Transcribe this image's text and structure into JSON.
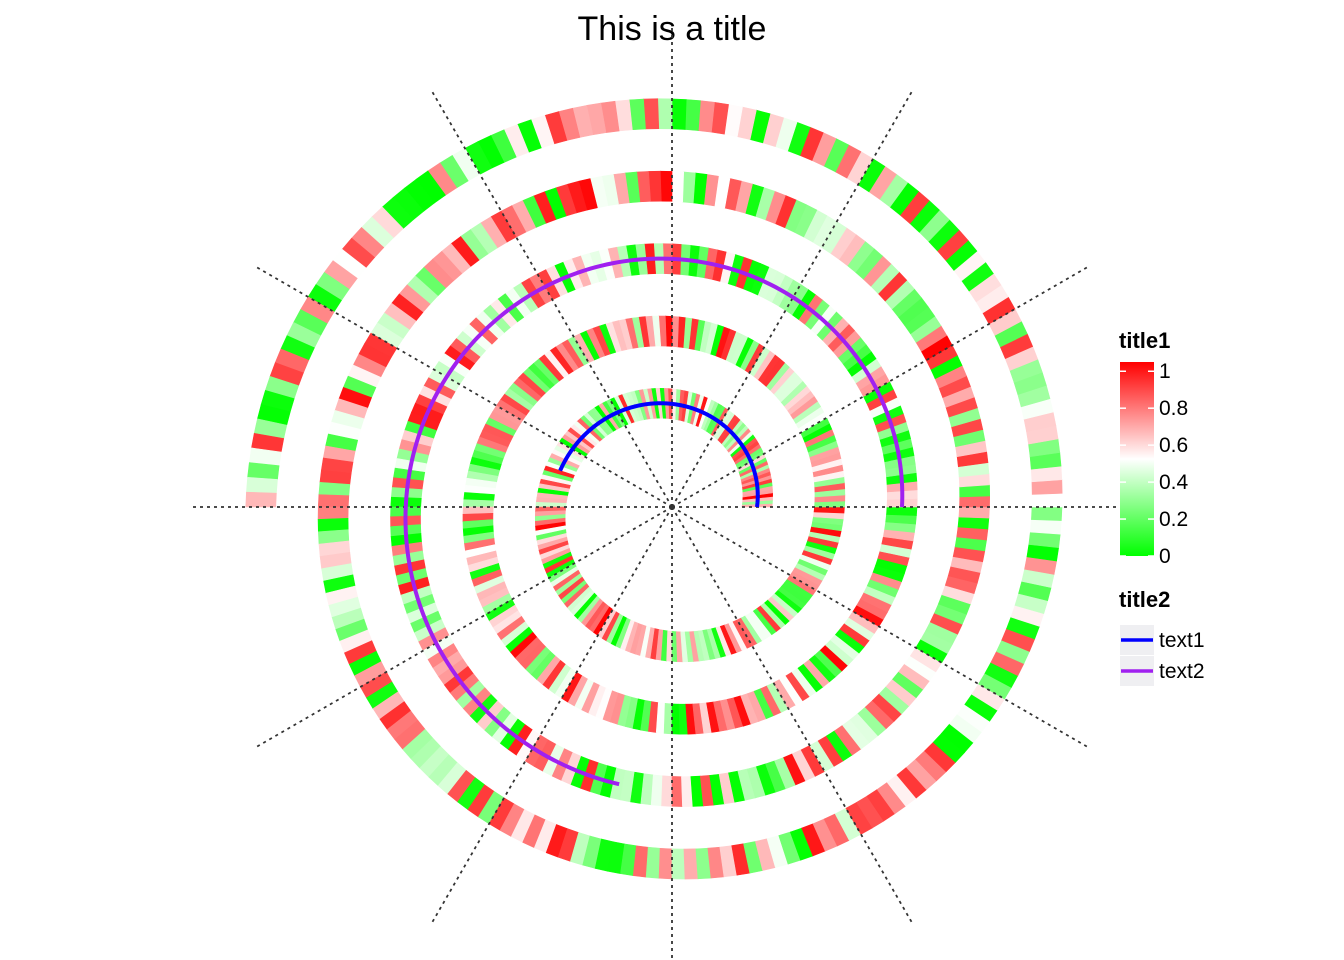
{
  "chart_data": {
    "type": "heatmap",
    "subtype": "polar spiral heatmap",
    "title": "This is a title",
    "color_scale": {
      "title": "title1",
      "min_color": "#00ff00",
      "mid_color": "#ffffff",
      "max_color": "#ff0000",
      "ticks": [
        {
          "value": 0,
          "label": "0"
        },
        {
          "value": 0.2,
          "label": "0.2"
        },
        {
          "value": 0.4,
          "label": "0.4"
        },
        {
          "value": 0.6,
          "label": "0.6"
        },
        {
          "value": 0.8,
          "label": "0.8"
        },
        {
          "value": 1,
          "label": "1"
        }
      ]
    },
    "lines_legend": {
      "title": "title2",
      "items": [
        {
          "label": "text1",
          "color": "#0000ff"
        },
        {
          "label": "text2",
          "color": "#a020f0"
        }
      ]
    },
    "spiral": {
      "turns": 4.5,
      "start_angle_deg": 0,
      "direction": "counterclockwise",
      "cells_per_turn": 180
    },
    "lines": [
      {
        "name": "text1",
        "color": "#0000ff",
        "start_turn": 0.0,
        "end_turn": 0.45
      },
      {
        "name": "text2",
        "color": "#a020f0",
        "start_turn": 2.0,
        "end_turn": 2.72
      }
    ],
    "reference_lines": {
      "count": 12,
      "style": "dotted",
      "color": "#333333"
    },
    "grid": false,
    "legend_position": "right"
  }
}
